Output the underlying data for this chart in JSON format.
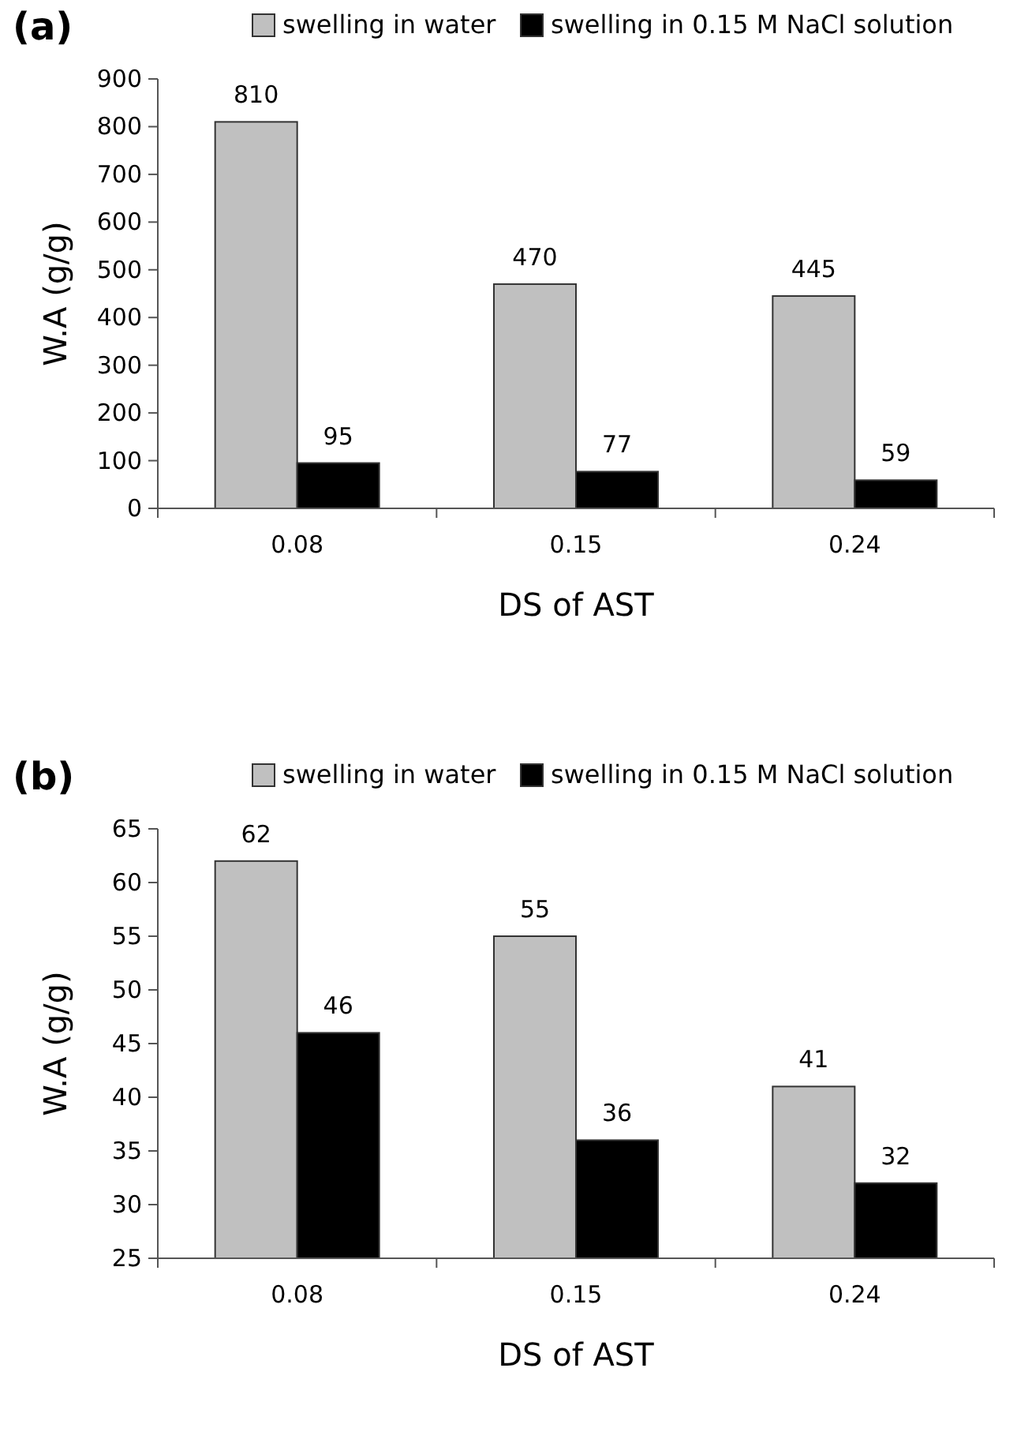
{
  "chart_data": [
    {
      "type": "bar",
      "title": "(a)",
      "xlabel": "DS of AST",
      "ylabel": "W.A (g/g)",
      "categories": [
        "0.08",
        "0.15",
        "0.24"
      ],
      "series": [
        {
          "name": "swelling in water",
          "color": "#c0c0c0",
          "values": [
            810,
            470,
            445
          ]
        },
        {
          "name": "swelling in 0.15 M NaCl solution",
          "color": "#000000",
          "values": [
            95,
            77,
            59
          ]
        }
      ],
      "ylim": [
        0,
        900
      ],
      "yticks": [
        0,
        100,
        200,
        300,
        400,
        500,
        600,
        700,
        800,
        900
      ],
      "data_labels": true,
      "legend": "top",
      "grid": false
    },
    {
      "type": "bar",
      "title": "(b)",
      "xlabel": "DS of AST",
      "ylabel": "W.A (g/g)",
      "categories": [
        "0.08",
        "0.15",
        "0.24"
      ],
      "series": [
        {
          "name": "swelling in water",
          "color": "#c0c0c0",
          "values": [
            62,
            55,
            41
          ]
        },
        {
          "name": "swelling in 0.15 M NaCl solution",
          "color": "#000000",
          "values": [
            46,
            36,
            32
          ]
        }
      ],
      "ylim": [
        25,
        65
      ],
      "yticks": [
        25,
        30,
        35,
        40,
        45,
        50,
        55,
        60,
        65
      ],
      "data_labels": true,
      "legend": "top",
      "grid": false
    }
  ]
}
